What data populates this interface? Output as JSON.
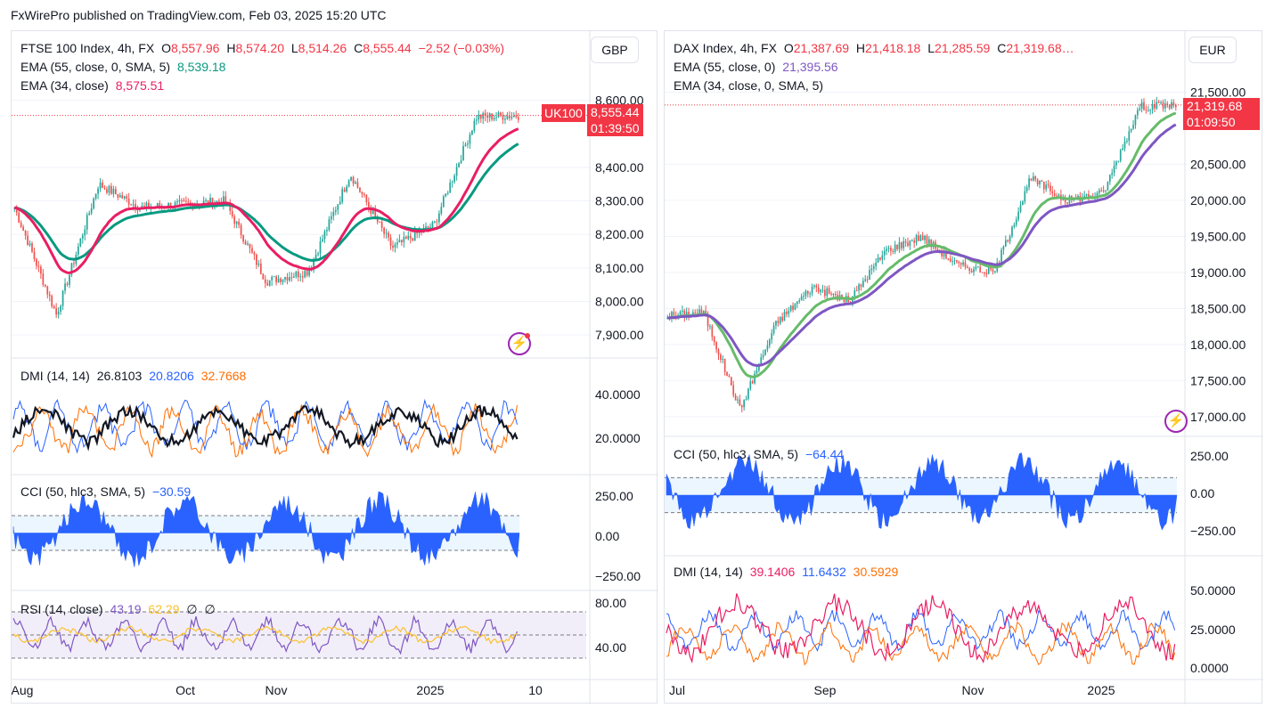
{
  "header": "FxWirePro published on TradingView.com, Feb 03, 2025 15:20 UTC",
  "ftse": {
    "title": "FTSE 100 Index, 4h, FX",
    "o_label": "O",
    "o": "8,557.96",
    "h_label": "H",
    "h": "8,574.20",
    "l_label": "L",
    "l": "8,514.26",
    "c_label": "C",
    "c": "8,555.44",
    "chg": "−2.52 (−0.03%)",
    "ema1_label": "EMA (55, close, 0, SMA, 5)",
    "ema1": "8,539.18",
    "ema2_label": "EMA (34, close)",
    "ema2": "8,575.51",
    "currency": "GBP",
    "symbol_tag": "UK100",
    "price_tag": "8,555.44",
    "time_tag": "01:39:50",
    "dmi_label": "DMI (14, 14)",
    "dmi_adx": "26.8103",
    "dmi_plus": "20.8206",
    "dmi_minus": "32.7668",
    "cci_label": "CCI (50, hlc3, SMA, 5)",
    "cci": "−30.59",
    "rsi_label": "RSI (14, close)",
    "rsi": "43.19",
    "rsi_ma": "62.29",
    "rsi_x1": "∅",
    "rsi_x2": "∅",
    "x_ticks": [
      "Aug",
      "Oct",
      "Nov",
      "2025",
      "10"
    ]
  },
  "dax": {
    "title": "DAX Index, 4h, FX",
    "o_label": "O",
    "o": "21,387.69",
    "h_label": "H",
    "h": "21,418.18",
    "l_label": "L",
    "l": "21,285.59",
    "c_label": "C",
    "c": "21,319.68…",
    "ema1_label": "EMA (55, close, 0)",
    "ema1": "21,395.56",
    "ema2_label": "EMA (34, close, 0, SMA, 5)",
    "currency": "EUR",
    "price_tag": "21,319.68",
    "time_tag": "01:09:50",
    "cci_label": "CCI (50, hlc3, SMA, 5)",
    "cci": "−64.44",
    "dmi_label": "DMI (14, 14)",
    "dmi_adx": "39.1406",
    "dmi_plus": "11.6432",
    "dmi_minus": "30.5929",
    "x_ticks": [
      "Jul",
      "Sep",
      "Nov",
      "2025"
    ]
  },
  "colors": {
    "up": "#26a69a",
    "down": "#ef5350",
    "ema_teal": "#089981",
    "ema_pink": "#e91e63",
    "ema_green": "#66bb6a",
    "ema_purple": "#7e57c2",
    "dmi_blue": "#2962ff",
    "dmi_orange": "#ff6d00",
    "dmi_black": "#131722",
    "rsi_purple": "#7e57c2",
    "rsi_yellow": "#fbc02d",
    "cci_blue": "#2962ff"
  },
  "chart_data": [
    {
      "type": "candlestick",
      "title": "FTSE 100 Index, 4h, FX",
      "currency": "GBP",
      "x": [
        "Aug",
        "Oct",
        "Nov",
        "2025",
        "10"
      ],
      "y_ticks": [
        7900,
        8000,
        8100,
        8200,
        8300,
        8400,
        8600
      ],
      "ylim": [
        7850,
        8700
      ],
      "series": [
        {
          "name": "Close",
          "x": [
            "Aug",
            "mid-Aug",
            "Sep",
            "mid-Sep",
            "Oct",
            "mid-Oct",
            "Nov",
            "mid-Nov",
            "Dec",
            "mid-Dec",
            "2025",
            "mid-Jan",
            "Feb"
          ],
          "values": [
            8280,
            7960,
            8350,
            8280,
            8290,
            8300,
            8060,
            8090,
            8380,
            8160,
            8230,
            8550,
            8555
          ]
        }
      ],
      "ema": {
        "EMA 55": 8539.18,
        "EMA 34": 8575.51
      },
      "last": {
        "open": 8557.96,
        "high": 8574.2,
        "low": 8514.26,
        "close": 8555.44,
        "change": -2.52,
        "change_pct": -0.03
      }
    },
    {
      "type": "line",
      "title": "DMI (14, 14)",
      "y_ticks": [
        20,
        40
      ],
      "series": [
        {
          "name": "ADX",
          "last": 26.8103
        },
        {
          "name": "+DI",
          "last": 20.8206
        },
        {
          "name": "−DI",
          "last": 32.7668
        }
      ]
    },
    {
      "type": "area",
      "title": "CCI (50, hlc3, SMA, 5)",
      "y_ticks": [
        -250,
        0,
        250
      ],
      "series": [
        {
          "name": "CCI",
          "last": -30.59
        }
      ]
    },
    {
      "type": "line",
      "title": "RSI (14, close)",
      "y_ticks": [
        40,
        80
      ],
      "series": [
        {
          "name": "RSI",
          "last": 43.19
        },
        {
          "name": "RSI MA",
          "last": 62.29
        }
      ]
    },
    {
      "type": "candlestick",
      "title": "DAX Index, 4h, FX",
      "currency": "EUR",
      "x": [
        "Jul",
        "Sep",
        "Nov",
        "2025"
      ],
      "y_ticks": [
        17000,
        17500,
        18000,
        18500,
        19000,
        19500,
        20000,
        20500,
        21500
      ],
      "ylim": [
        16850,
        21850
      ],
      "series": [
        {
          "name": "Close",
          "x": [
            "Jul",
            "mid-Jul",
            "Aug",
            "mid-Aug",
            "Sep",
            "mid-Sep",
            "Oct",
            "mid-Oct",
            "Nov",
            "mid-Nov",
            "Dec",
            "mid-Dec",
            "2025",
            "mid-Jan",
            "Feb"
          ],
          "values": [
            18400,
            18450,
            17100,
            18300,
            18800,
            18600,
            19300,
            19500,
            19100,
            19000,
            20300,
            20000,
            20100,
            21300,
            21320
          ]
        }
      ],
      "ema": {
        "EMA 55": 21395.56
      },
      "last": {
        "open": 21387.69,
        "high": 21418.18,
        "low": 21285.59,
        "close": 21319.68
      }
    },
    {
      "type": "area",
      "title": "CCI (50, hlc3, SMA, 5)",
      "y_ticks": [
        -250,
        0,
        250
      ],
      "series": [
        {
          "name": "CCI",
          "last": -64.44
        }
      ]
    },
    {
      "type": "line",
      "title": "DMI (14, 14)",
      "y_ticks": [
        0,
        25,
        50
      ],
      "series": [
        {
          "name": "ADX",
          "last": 39.1406
        },
        {
          "name": "+DI",
          "last": 11.6432
        },
        {
          "name": "−DI",
          "last": 30.5929
        }
      ]
    }
  ]
}
